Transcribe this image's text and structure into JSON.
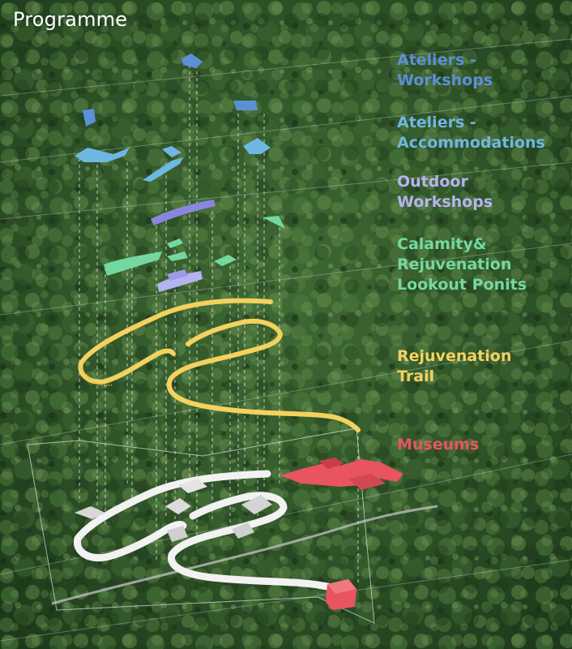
{
  "title": "Programme",
  "legend": [
    {
      "lines": [
        "Ateliers -",
        "Workshops"
      ],
      "color": "#5d8fd6"
    },
    {
      "lines": [
        "Ateliers -",
        "Accommodations"
      ],
      "color": "#6fb7e3"
    },
    {
      "lines": [
        "Outdoor",
        "Workshops"
      ],
      "color": "#b5b3f2"
    },
    {
      "lines": [
        "Calamity&",
        "Rejuvenation",
        "Lookout Ponits"
      ],
      "color": "#74d9a0"
    },
    {
      "lines": [
        "Rejuvenation",
        "Trail"
      ],
      "color": "#f3d25e"
    },
    {
      "lines": [
        "Museums"
      ],
      "color": "#e8545f"
    }
  ],
  "colors": {
    "forest_dark": "#1c3519",
    "forest_mid": "#34592c",
    "forest_light": "#5b8546",
    "trail_white": "#f2f2f2",
    "guide_line": "#e6e6e6"
  }
}
